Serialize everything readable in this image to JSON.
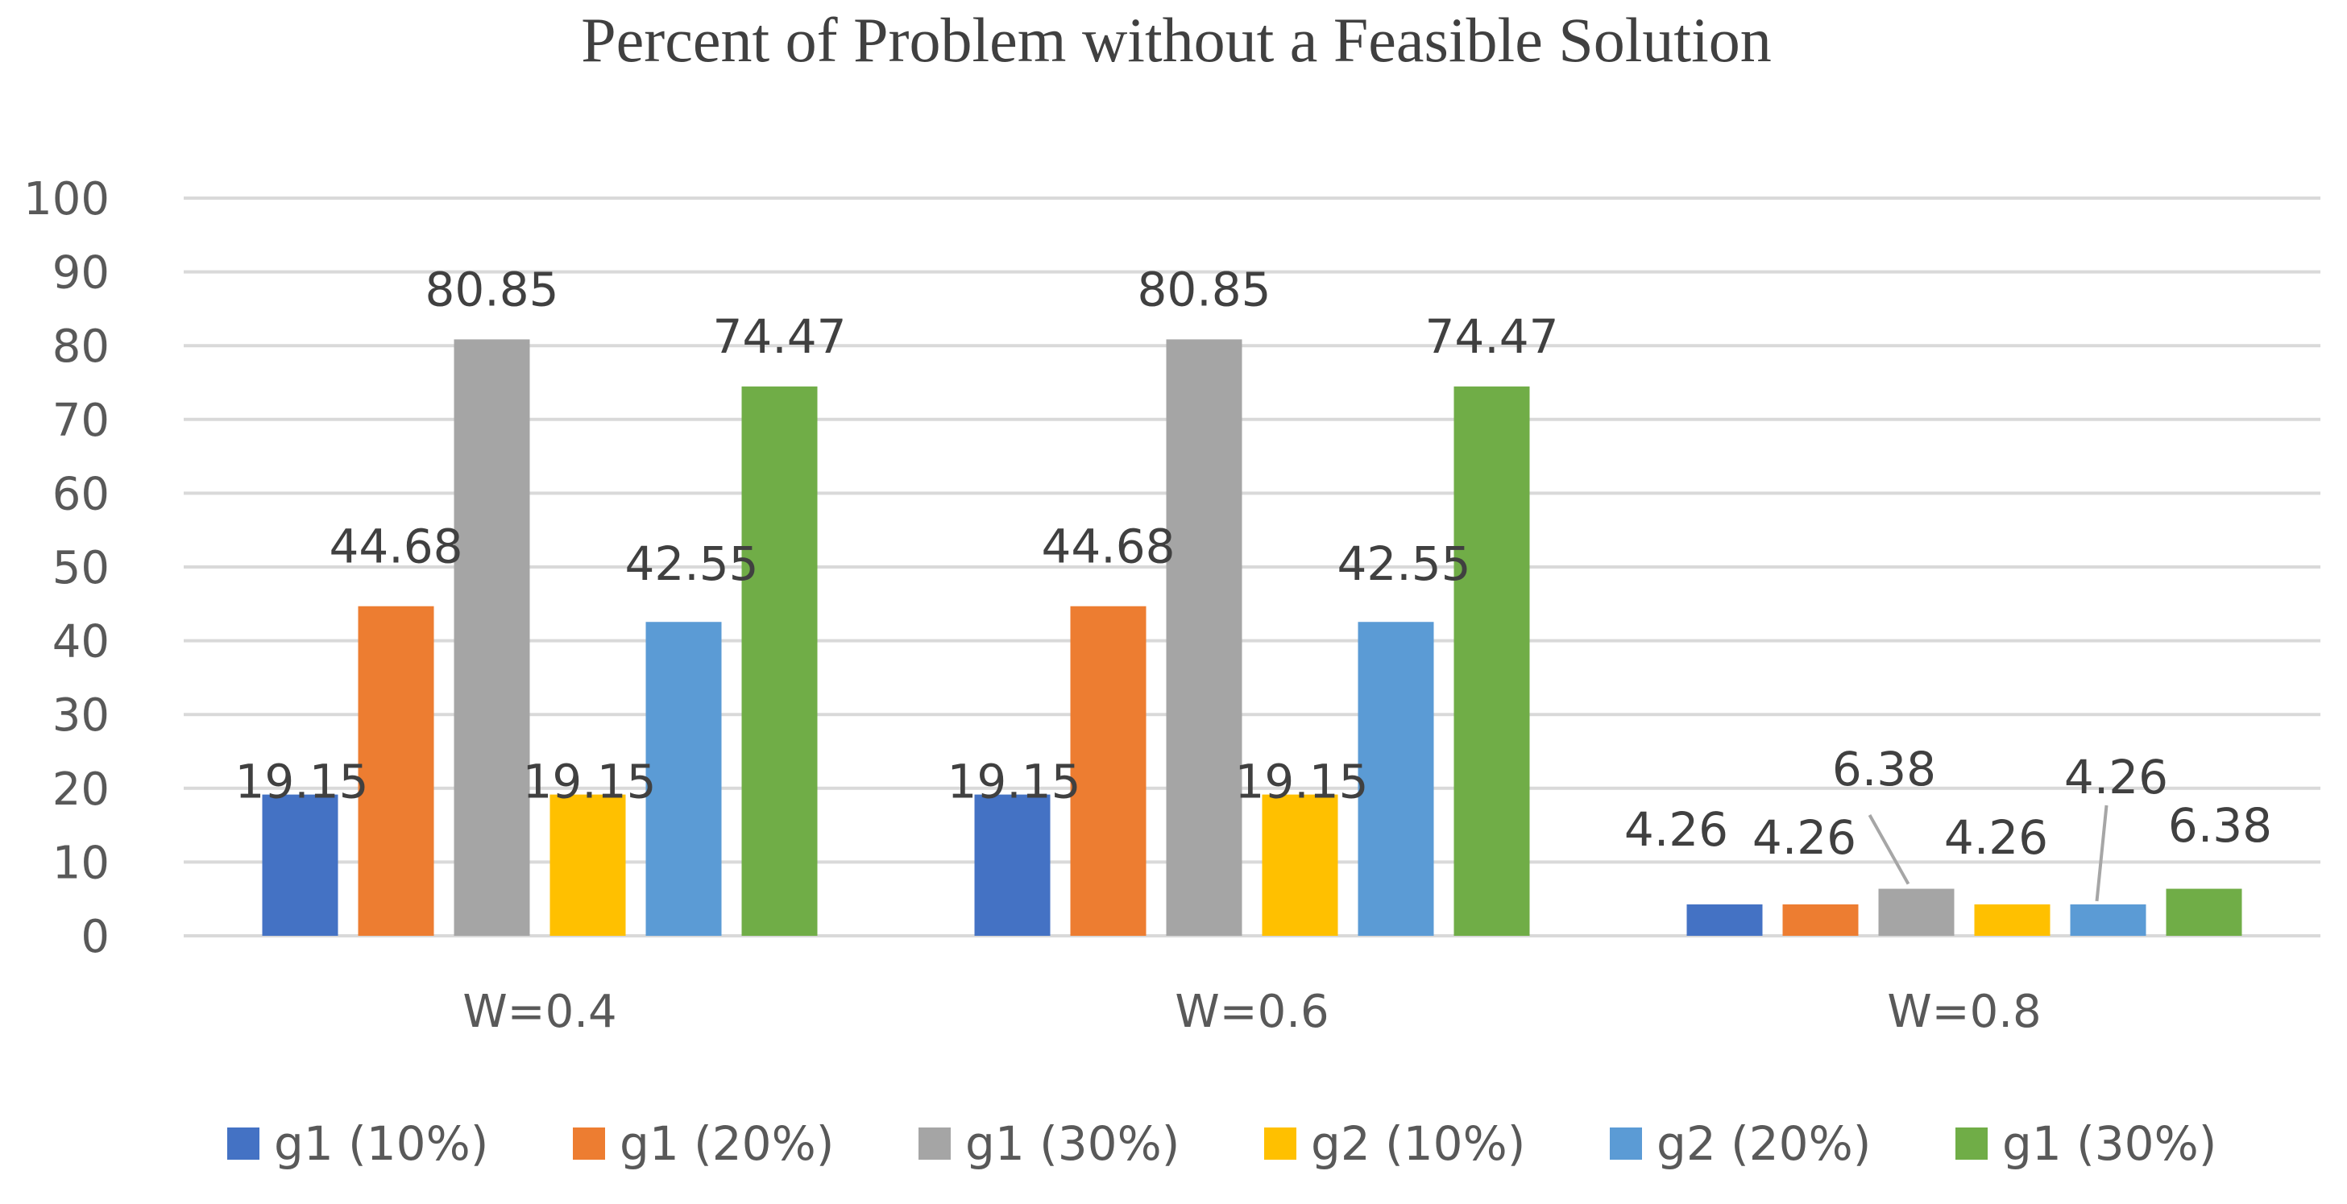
{
  "chart_data": {
    "type": "bar",
    "title": "Percent of Problem without a Feasible Solution",
    "categories": [
      "W=0.4",
      "W=0.6",
      "W=0.8"
    ],
    "ylim": [
      0,
      100
    ],
    "yticks": [
      0,
      10,
      20,
      30,
      40,
      50,
      60,
      70,
      80,
      90,
      100
    ],
    "grid": true,
    "legend_position": "bottom",
    "series": [
      {
        "name": "g1 (10%)",
        "color": "#4472c4",
        "values": [
          19.15,
          19.15,
          4.26
        ],
        "labels": [
          "19.15",
          "19.15",
          "4.26"
        ]
      },
      {
        "name": "g1 (20%)",
        "color": "#ed7d31",
        "values": [
          44.68,
          44.68,
          4.26
        ],
        "labels": [
          "44.68",
          "44.68",
          "4.26"
        ]
      },
      {
        "name": "g1 (30%)",
        "color": "#a5a5a5",
        "values": [
          80.85,
          80.85,
          6.38
        ],
        "labels": [
          "80.85",
          "80.85",
          "6.38"
        ]
      },
      {
        "name": "g2 (10%)",
        "color": "#ffc000",
        "values": [
          19.15,
          19.15,
          4.26
        ],
        "labels": [
          "19.15",
          "19.15",
          "4.26"
        ]
      },
      {
        "name": "g2 (20%)",
        "color": "#5b9bd5",
        "values": [
          42.55,
          42.55,
          4.26
        ],
        "labels": [
          "42.55",
          "42.55",
          "4.26"
        ]
      },
      {
        "name": "g1 (30%)",
        "color": "#70ad47",
        "values": [
          74.47,
          74.47,
          6.38
        ],
        "labels": [
          "74.47",
          "74.47",
          "6.38"
        ]
      }
    ]
  }
}
